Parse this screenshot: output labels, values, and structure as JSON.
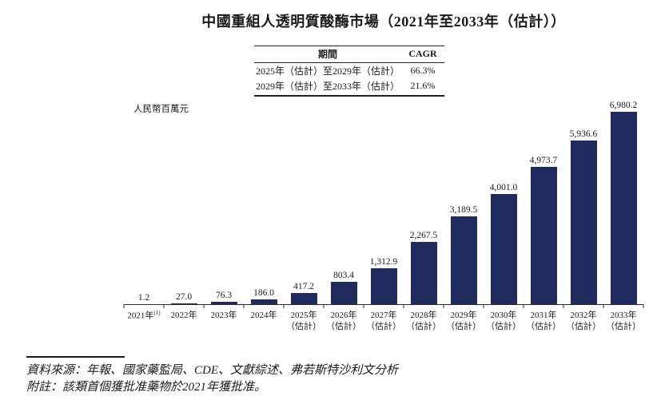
{
  "title": "中國重組人透明質酸酶市場（2021年至2033年（估計））",
  "cagr_table": {
    "headers": {
      "period": "期間",
      "cagr": "CAGR"
    },
    "rows": [
      {
        "period": "2025年（估計）至2029年（估計）",
        "cagr": "66.3%"
      },
      {
        "period": "2029年（估計）至2033年（估計）",
        "cagr": "21.6%"
      }
    ]
  },
  "chart_data": {
    "type": "bar",
    "title": "中國重組人透明質酸酶市場（2021年至2033年（估計））",
    "unit_label": "人民幣百萬元",
    "xlabel": "",
    "ylabel": "人民幣百萬元",
    "ylim": [
      0,
      6980.2
    ],
    "grid": false,
    "legend": "none",
    "bar_color": "#1f2a5e",
    "categories": [
      {
        "year": "2021年",
        "sup": "(1)",
        "est": ""
      },
      {
        "year": "2022年",
        "sup": "",
        "est": ""
      },
      {
        "year": "2023年",
        "sup": "",
        "est": ""
      },
      {
        "year": "2024年",
        "sup": "",
        "est": ""
      },
      {
        "year": "2025年",
        "sup": "",
        "est": "（估計）"
      },
      {
        "year": "2026年",
        "sup": "",
        "est": "（估計）"
      },
      {
        "year": "2027年",
        "sup": "",
        "est": "（估計）"
      },
      {
        "year": "2028年",
        "sup": "",
        "est": "（估計）"
      },
      {
        "year": "2029年",
        "sup": "",
        "est": "（估計）"
      },
      {
        "year": "2030年",
        "sup": "",
        "est": "（估計）"
      },
      {
        "year": "2031年",
        "sup": "",
        "est": "（估計）"
      },
      {
        "year": "2032年",
        "sup": "",
        "est": "（估計）"
      },
      {
        "year": "2033年",
        "sup": "",
        "est": "（估計）"
      }
    ],
    "values": [
      1.2,
      27.0,
      76.3,
      186.0,
      417.2,
      803.4,
      1312.9,
      2267.5,
      3189.5,
      4001.0,
      4973.7,
      5936.6,
      6980.2
    ],
    "value_labels": [
      "1.2",
      "27.0",
      "76.3",
      "186.0",
      "417.2",
      "803.4",
      "1,312.9",
      "2,267.5",
      "3,189.5",
      "4,001.0",
      "4,973.7",
      "5,936.6",
      "6,980.2"
    ]
  },
  "footer": {
    "source": "資料來源：年報、國家藥監局、CDE、文獻綜述、弗若斯特沙利文分析",
    "note": "附註：該類首個獲批准藥物於2021年獲批准。"
  }
}
